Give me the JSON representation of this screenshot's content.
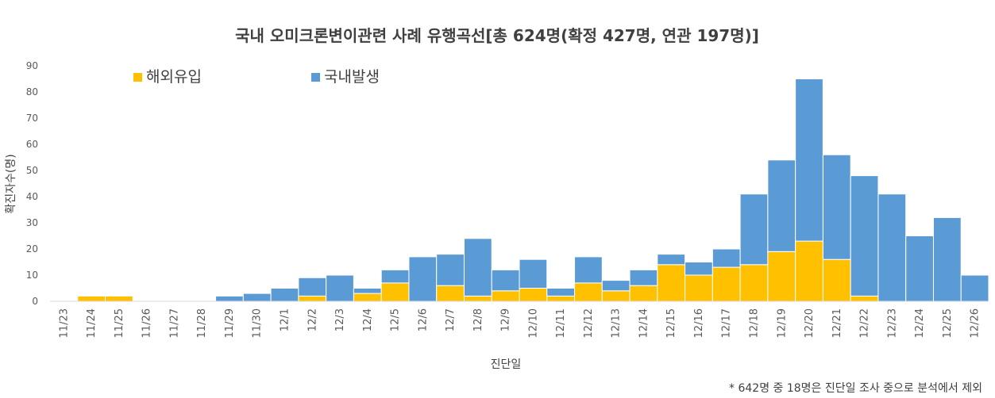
{
  "chart_data": {
    "type": "bar",
    "stacked": true,
    "title": "국내 오미크론변이관련 사례 유행곡선[총 624명(확정 427명, 연관 197명)]",
    "xlabel": "진단일",
    "ylabel": "확진자수(명)",
    "ylim": [
      0,
      90
    ],
    "yticks": [
      0,
      10,
      20,
      30,
      40,
      50,
      60,
      70,
      80,
      90
    ],
    "grid": false,
    "legend_position": "top-left",
    "note": "* 642명 중 18명은 진단일 조사 중으로 분석에서 제외",
    "categories": [
      "11/23",
      "11/24",
      "11/25",
      "11/26",
      "11/27",
      "11/28",
      "11/29",
      "11/30",
      "12/1",
      "12/2",
      "12/3",
      "12/4",
      "12/5",
      "12/6",
      "12/7",
      "12/8",
      "12/9",
      "12/10",
      "12/11",
      "12/12",
      "12/13",
      "12/14",
      "12/15",
      "12/16",
      "12/17",
      "12/18",
      "12/19",
      "12/20",
      "12/21",
      "12/22",
      "12/23",
      "12/24",
      "12/25",
      "12/26"
    ],
    "series": [
      {
        "name": "해외유입",
        "color": "#FFC000",
        "values": [
          0,
          2,
          2,
          0,
          0,
          0,
          0,
          0,
          0,
          2,
          0,
          3,
          7,
          0,
          6,
          2,
          4,
          5,
          2,
          7,
          4,
          6,
          14,
          10,
          13,
          14,
          19,
          23,
          16,
          2,
          0,
          0,
          0,
          0
        ]
      },
      {
        "name": "국내발생",
        "color": "#5B9BD5",
        "values": [
          0,
          0,
          0,
          0,
          0,
          0,
          2,
          3,
          5,
          7,
          10,
          2,
          5,
          17,
          12,
          22,
          8,
          11,
          3,
          10,
          4,
          6,
          4,
          5,
          7,
          27,
          35,
          62,
          40,
          46,
          41,
          25,
          32,
          10
        ]
      }
    ]
  }
}
